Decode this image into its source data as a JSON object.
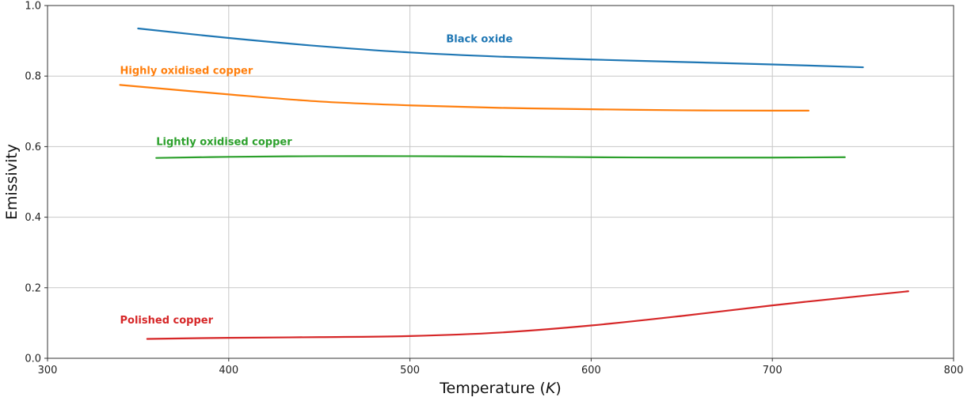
{
  "chart_data": {
    "type": "line",
    "xlabel": "Temperature (K)",
    "xlabel_main": "Temperature ",
    "xlabel_unit": "K",
    "ylabel": "Emissivity",
    "xlim": [
      300,
      800
    ],
    "ylim": [
      0.0,
      1.0
    ],
    "xticks": [
      300,
      400,
      500,
      600,
      700,
      800
    ],
    "xtick_labels": [
      "300",
      "400",
      "500",
      "600",
      "700",
      "800"
    ],
    "yticks": [
      0.0,
      0.2,
      0.4,
      0.6,
      0.8,
      1.0
    ],
    "ytick_labels": [
      "0.0",
      "0.2",
      "0.4",
      "0.6",
      "0.8",
      "1.0"
    ],
    "grid": true,
    "legend": "inline labels",
    "series": [
      {
        "name": "Black oxide",
        "color": "#1f77b4",
        "label_at": [
          520,
          0.905
        ],
        "x": [
          350,
          400,
          450,
          500,
          550,
          600,
          650,
          700,
          750
        ],
        "y": [
          0.935,
          0.908,
          0.885,
          0.867,
          0.855,
          0.847,
          0.84,
          0.833,
          0.825
        ]
      },
      {
        "name": "Highly oxidised copper",
        "color": "#ff7f0e",
        "label_at": [
          340,
          0.815
        ],
        "x": [
          340,
          400,
          450,
          500,
          550,
          600,
          650,
          700,
          720
        ],
        "y": [
          0.775,
          0.748,
          0.728,
          0.717,
          0.71,
          0.706,
          0.703,
          0.702,
          0.702
        ]
      },
      {
        "name": "Lightly oxidised copper",
        "color": "#2ca02c",
        "label_at": [
          360,
          0.613
        ],
        "x": [
          360,
          400,
          450,
          500,
          550,
          600,
          650,
          700,
          740
        ],
        "y": [
          0.568,
          0.571,
          0.573,
          0.573,
          0.572,
          0.57,
          0.569,
          0.569,
          0.57
        ]
      },
      {
        "name": "Polished copper",
        "color": "#d62728",
        "label_at": [
          340,
          0.108
        ],
        "x": [
          355,
          400,
          450,
          500,
          550,
          600,
          650,
          700,
          750,
          775
        ],
        "y": [
          0.055,
          0.058,
          0.06,
          0.063,
          0.073,
          0.093,
          0.12,
          0.15,
          0.177,
          0.19
        ]
      }
    ]
  }
}
